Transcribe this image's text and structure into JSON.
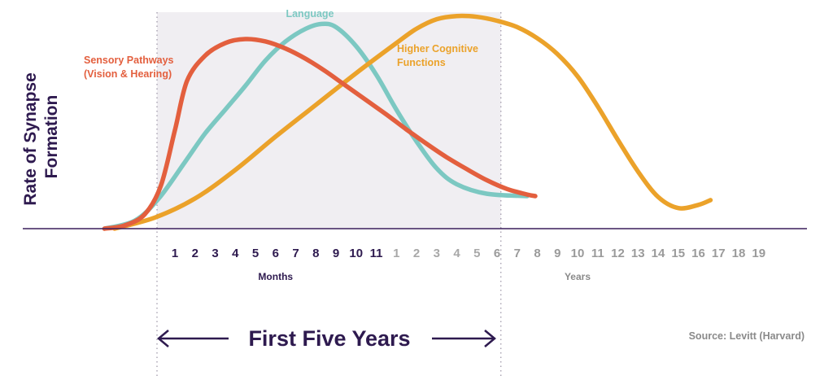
{
  "chart_data": {
    "type": "line",
    "title": "",
    "ylabel_lines": [
      "Rate of Synapse",
      "Formation"
    ],
    "x_axis": {
      "month_ticks": [
        "1",
        "2",
        "3",
        "4",
        "5",
        "6",
        "7",
        "8",
        "9",
        "10",
        "11"
      ],
      "year_ticks_in_band": [
        "1",
        "2",
        "3",
        "4",
        "5"
      ],
      "year_ticks_after_band": [
        "6",
        "7",
        "8",
        "9",
        "10",
        "11",
        "12",
        "13",
        "14",
        "15",
        "16",
        "17",
        "18",
        "19"
      ],
      "months_label": "Months",
      "years_label": "Years"
    },
    "series": [
      {
        "name": "Sensory Pathways",
        "name_line2": "(Vision & Hearing)",
        "color": "#e35f3e",
        "points": [
          [
            -3.5,
            0.0
          ],
          [
            -2.5,
            0.02
          ],
          [
            -1.5,
            0.09
          ],
          [
            -0.7,
            0.27
          ],
          [
            0.0,
            0.62
          ],
          [
            0.6,
            0.93
          ],
          [
            1.5,
            1.09
          ],
          [
            2.5,
            1.17
          ],
          [
            3.5,
            1.195
          ],
          [
            4.5,
            1.18
          ],
          [
            5.5,
            1.135
          ],
          [
            6.5,
            1.07
          ],
          [
            7.5,
            0.99
          ],
          [
            8.5,
            0.9
          ],
          [
            9.5,
            0.81
          ],
          [
            10.5,
            0.72
          ],
          [
            11.5,
            0.625
          ],
          [
            12.5,
            0.535
          ],
          [
            13.5,
            0.45
          ],
          [
            14.5,
            0.375
          ],
          [
            15.5,
            0.305
          ],
          [
            16.5,
            0.25
          ],
          [
            17.5,
            0.215
          ],
          [
            17.9,
            0.205
          ]
        ]
      },
      {
        "name": "Language",
        "color": "#7cc8c2",
        "points": [
          [
            -3.5,
            0.0
          ],
          [
            -2.0,
            0.05
          ],
          [
            -0.8,
            0.19
          ],
          [
            0.5,
            0.42
          ],
          [
            1.5,
            0.6
          ],
          [
            2.5,
            0.75
          ],
          [
            3.5,
            0.9
          ],
          [
            4.5,
            1.06
          ],
          [
            5.5,
            1.18
          ],
          [
            6.5,
            1.26
          ],
          [
            7.3,
            1.29
          ],
          [
            8.0,
            1.27
          ],
          [
            9.0,
            1.15
          ],
          [
            10.0,
            0.97
          ],
          [
            11.0,
            0.75
          ],
          [
            12.0,
            0.55
          ],
          [
            13.0,
            0.38
          ],
          [
            14.0,
            0.28
          ],
          [
            15.5,
            0.22
          ],
          [
            17.5,
            0.205
          ]
        ]
      },
      {
        "name": "Higher Cognitive",
        "name_line2": "Functions",
        "color": "#eba22a",
        "points": [
          [
            -3.0,
            0.0
          ],
          [
            -1.0,
            0.07
          ],
          [
            1.0,
            0.19
          ],
          [
            3.0,
            0.37
          ],
          [
            5.0,
            0.58
          ],
          [
            7.0,
            0.78
          ],
          [
            9.0,
            0.98
          ],
          [
            11.0,
            1.17
          ],
          [
            12.0,
            1.26
          ],
          [
            13.0,
            1.32
          ],
          [
            14.0,
            1.34
          ],
          [
            15.0,
            1.335
          ],
          [
            16.0,
            1.31
          ],
          [
            17.0,
            1.27
          ],
          [
            18.0,
            1.2
          ],
          [
            19.0,
            1.1
          ],
          [
            20.0,
            0.96
          ],
          [
            21.0,
            0.77
          ],
          [
            22.0,
            0.56
          ],
          [
            23.0,
            0.36
          ],
          [
            24.0,
            0.2
          ],
          [
            25.0,
            0.13
          ],
          [
            26.0,
            0.15
          ],
          [
            26.6,
            0.18
          ]
        ]
      }
    ],
    "band": {
      "label": "First Five Years",
      "x_start": 0,
      "x_end": 17
    },
    "source": "Source: Levitt (Harvard)",
    "ylim": [
      0,
      1.4
    ],
    "grid": false,
    "legend": "none"
  }
}
